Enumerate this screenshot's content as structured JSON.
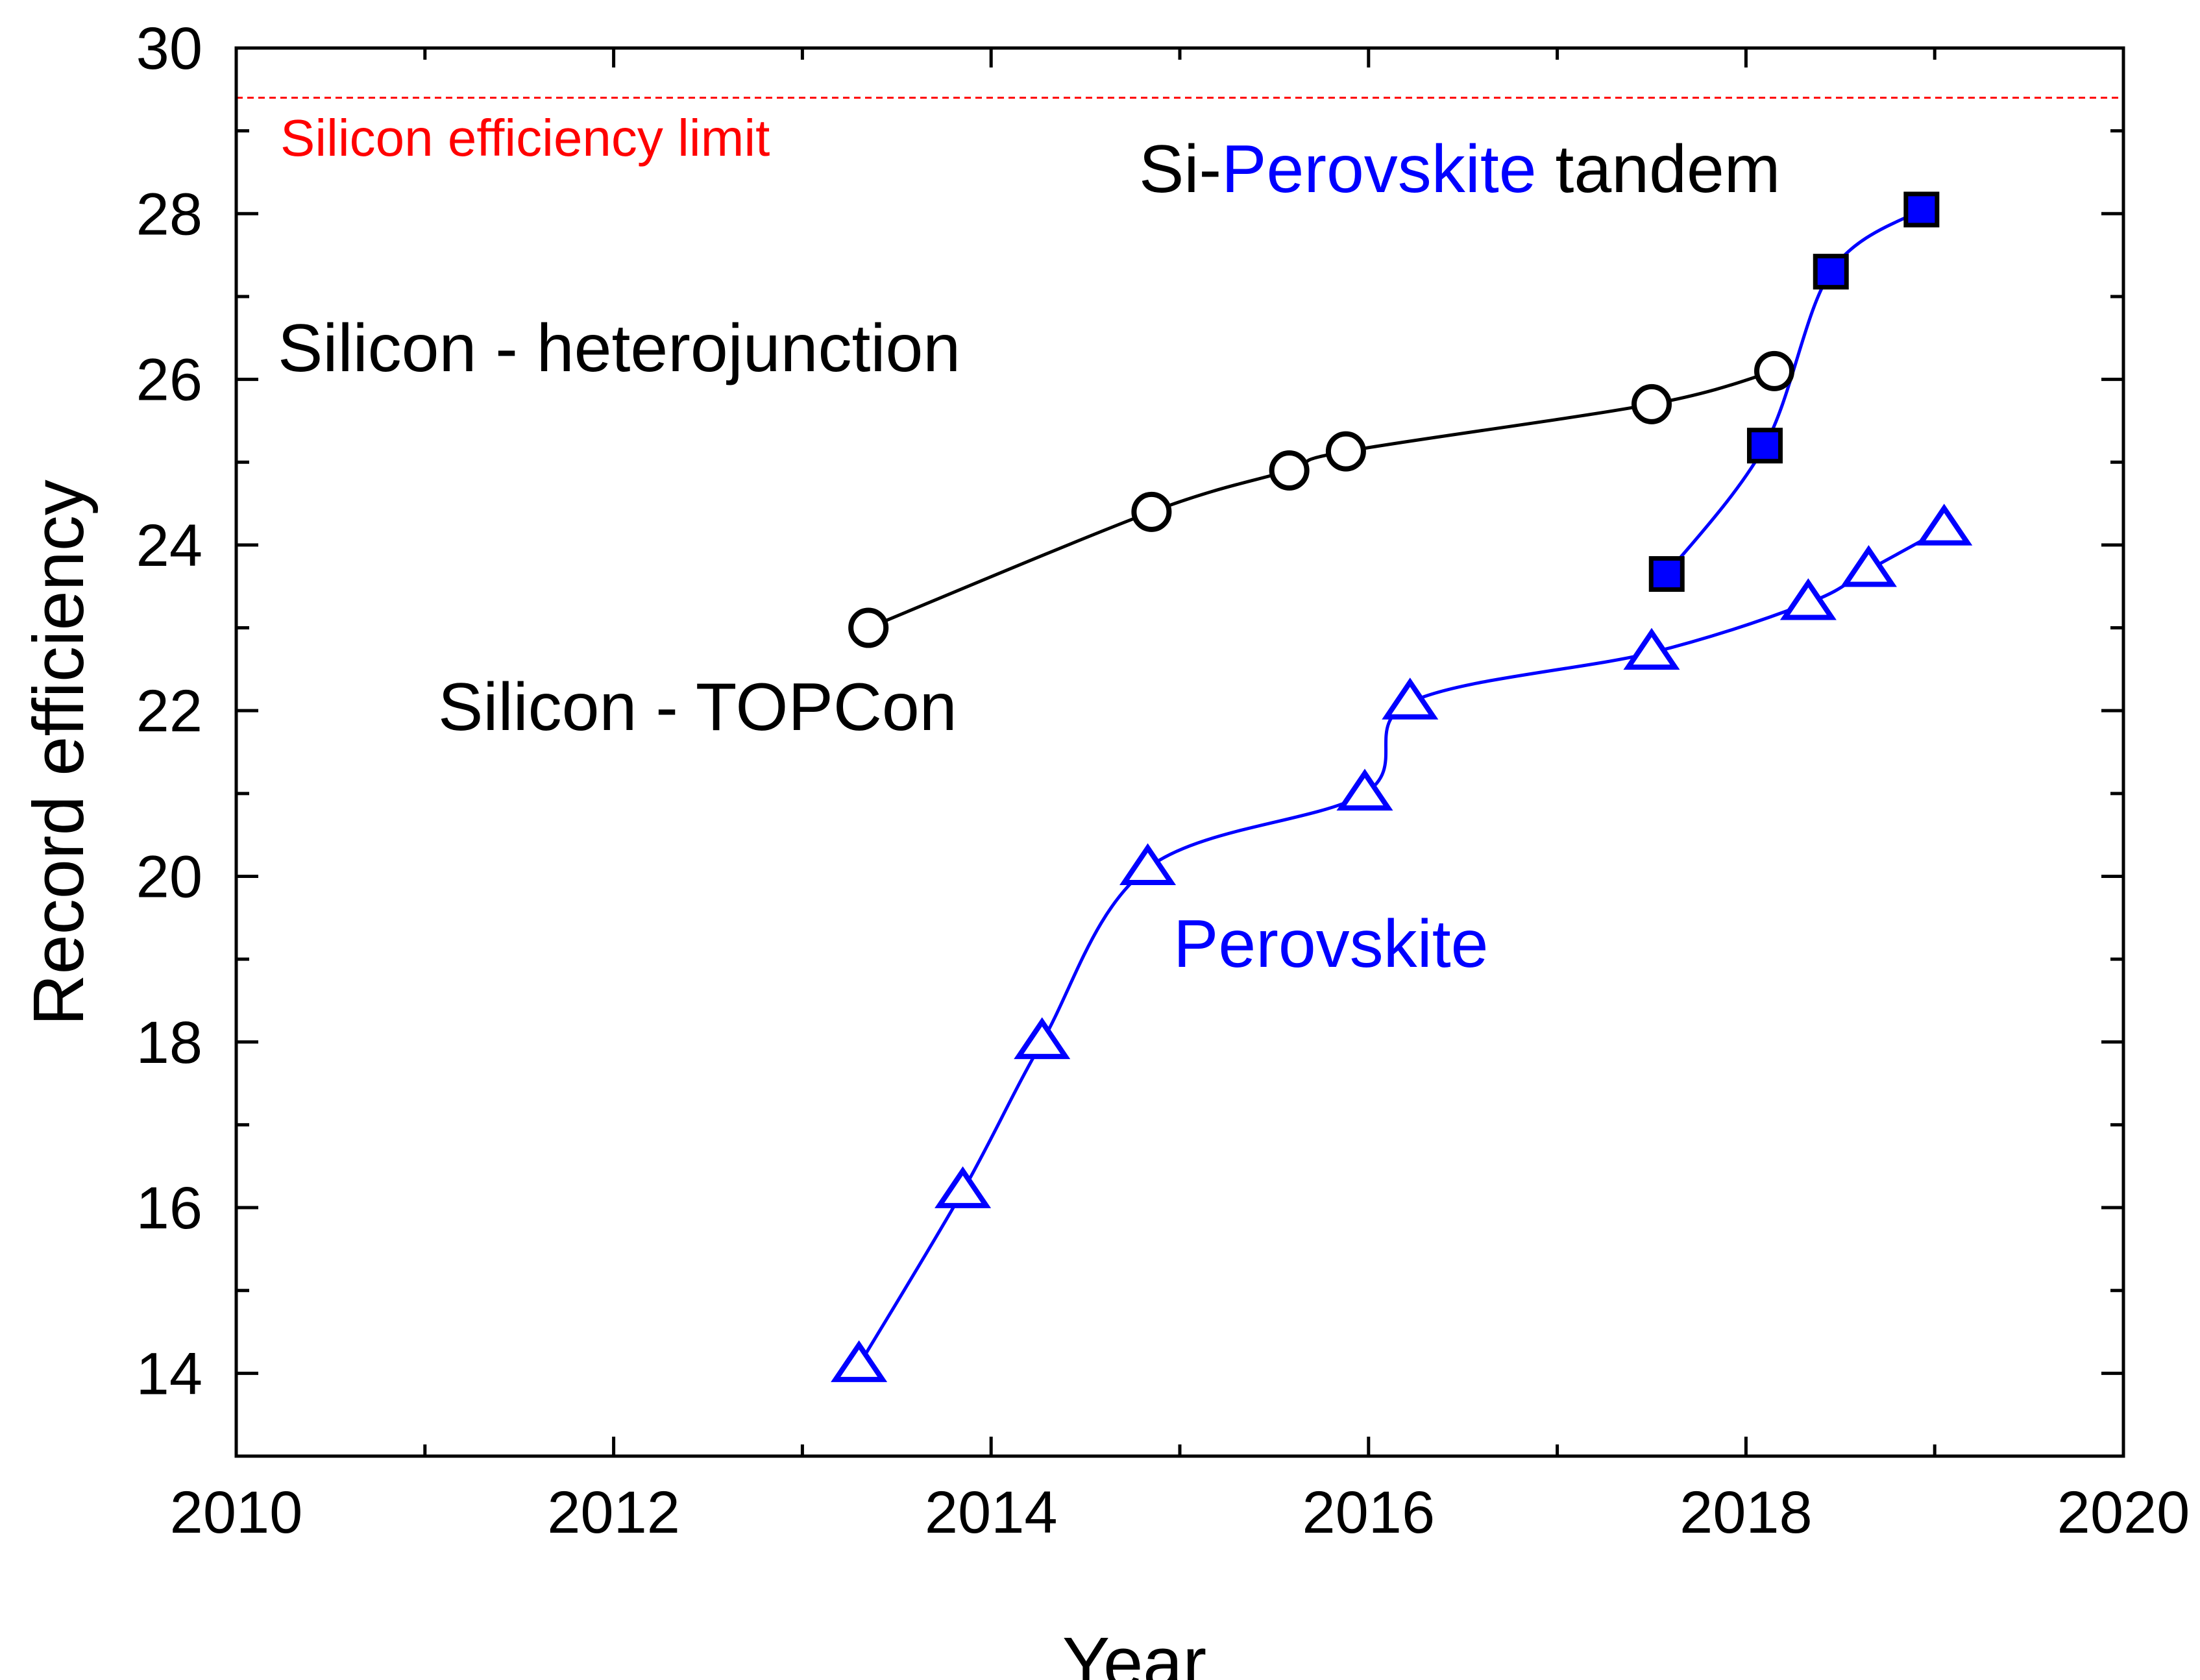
{
  "chart_data": {
    "type": "scatter",
    "xlabel": "Year",
    "ylabel": "Record efficiency",
    "xlim": [
      2010,
      2020
    ],
    "ylim": [
      13,
      30
    ],
    "xticks": [
      2010,
      2012,
      2014,
      2016,
      2018,
      2020
    ],
    "xtick_labels": [
      "2010",
      "2012",
      "2014",
      "2016",
      "2018",
      "2020"
    ],
    "yticks": [
      14,
      16,
      18,
      20,
      22,
      24,
      26,
      28,
      30
    ],
    "ytick_labels": [
      "14",
      "16",
      "18",
      "20",
      "22",
      "24",
      "26",
      "28",
      "30"
    ],
    "grid": false,
    "reference_line": {
      "y": 29.4,
      "label": "Silicon efficiency limit",
      "color": "#ff0000",
      "style": "dashed"
    },
    "series": [
      {
        "label_parts": [
          {
            "text": "Silicon - heterojunction",
            "color": "#000000"
          }
        ],
        "color": "#000000",
        "marker": "open-circle",
        "points": [
          [
            2013.35,
            23.0
          ],
          [
            2014.85,
            24.4
          ],
          [
            2015.58,
            24.9
          ],
          [
            2015.88,
            25.13
          ],
          [
            2017.5,
            25.7
          ],
          [
            2018.15,
            26.1
          ]
        ]
      },
      {
        "label_parts": [
          {
            "text": "Perovskite",
            "color": "#0000ff"
          }
        ],
        "color": "#0000ff",
        "marker": "open-triangle",
        "points": [
          [
            2013.3,
            14.1
          ],
          [
            2013.85,
            16.2
          ],
          [
            2014.27,
            18.0
          ],
          [
            2014.83,
            20.1
          ],
          [
            2015.98,
            21.0
          ],
          [
            2016.22,
            22.1
          ],
          [
            2017.5,
            22.7
          ],
          [
            2018.33,
            23.3
          ],
          [
            2018.65,
            23.7
          ],
          [
            2019.05,
            24.2
          ]
        ]
      },
      {
        "label_parts": [
          {
            "text": "Si-",
            "color": "#000000"
          },
          {
            "text": "Perovskite",
            "color": "#0000ff"
          },
          {
            "text": " tandem",
            "color": "#000000"
          }
        ],
        "color": "#0000ff",
        "marker": "filled-square",
        "points": [
          [
            2017.58,
            23.65
          ],
          [
            2018.1,
            25.2
          ],
          [
            2018.45,
            27.3
          ],
          [
            2018.93,
            28.05
          ]
        ]
      }
    ],
    "annotations": [
      {
        "text": "Silicon - TOPCon",
        "color": "#000000"
      }
    ]
  }
}
